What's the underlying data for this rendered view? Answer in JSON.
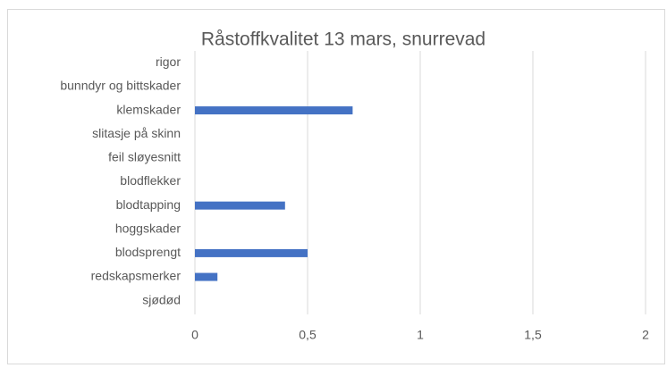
{
  "chart_data": {
    "type": "hbar",
    "title": "Råstoffkvalitet 13 mars,  snurrevad",
    "categories": [
      "rigor",
      "bunndyr og bittskader",
      "klemskader",
      "slitasje på skinn",
      "feil sløyesnitt",
      "blodflekker",
      "blodtapping",
      "hoggskader",
      "blodsprengt",
      "redskapsmerker",
      "sjødød"
    ],
    "values": [
      0,
      0,
      0.7,
      0,
      0,
      0,
      0.4,
      0,
      0.5,
      0.1,
      0
    ],
    "color": "#4472c4",
    "xlim": [
      0,
      2
    ],
    "xticks": [
      0,
      {
        "value": 0.5,
        "label": "0,5"
      },
      1,
      {
        "value": 1.5,
        "label": "1,5"
      },
      2
    ],
    "grid": true
  }
}
